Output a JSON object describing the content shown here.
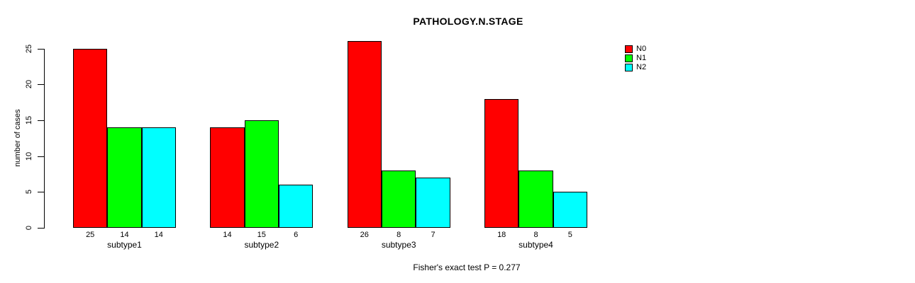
{
  "chart_data": {
    "type": "bar",
    "title": "PATHOLOGY.N.STAGE",
    "ylabel": "number of cases",
    "xlabel": "",
    "categories": [
      "subtype1",
      "subtype2",
      "subtype3",
      "subtype4"
    ],
    "series": [
      {
        "name": "N0",
        "color": "#FF0000",
        "values": [
          25,
          14,
          26,
          18
        ]
      },
      {
        "name": "N1",
        "color": "#00FF00",
        "values": [
          14,
          15,
          8,
          8
        ]
      },
      {
        "name": "N2",
        "color": "#00FFFF",
        "values": [
          14,
          6,
          7,
          5
        ]
      }
    ],
    "bar_value_labels": [
      [
        "25",
        "14",
        "14"
      ],
      [
        "14",
        "15",
        "6"
      ],
      [
        "26",
        "8",
        "7"
      ],
      [
        "18",
        "8",
        "5"
      ]
    ],
    "yticks": [
      0,
      5,
      10,
      15,
      20,
      25
    ],
    "ylim": [
      0,
      26
    ],
    "grid": false,
    "legend_position": "top-right",
    "annotation": "Fisher's exact test P = 0.277",
    "colors": {
      "axis": "#000000",
      "text": "#000000",
      "background": "#FFFFFF"
    }
  }
}
